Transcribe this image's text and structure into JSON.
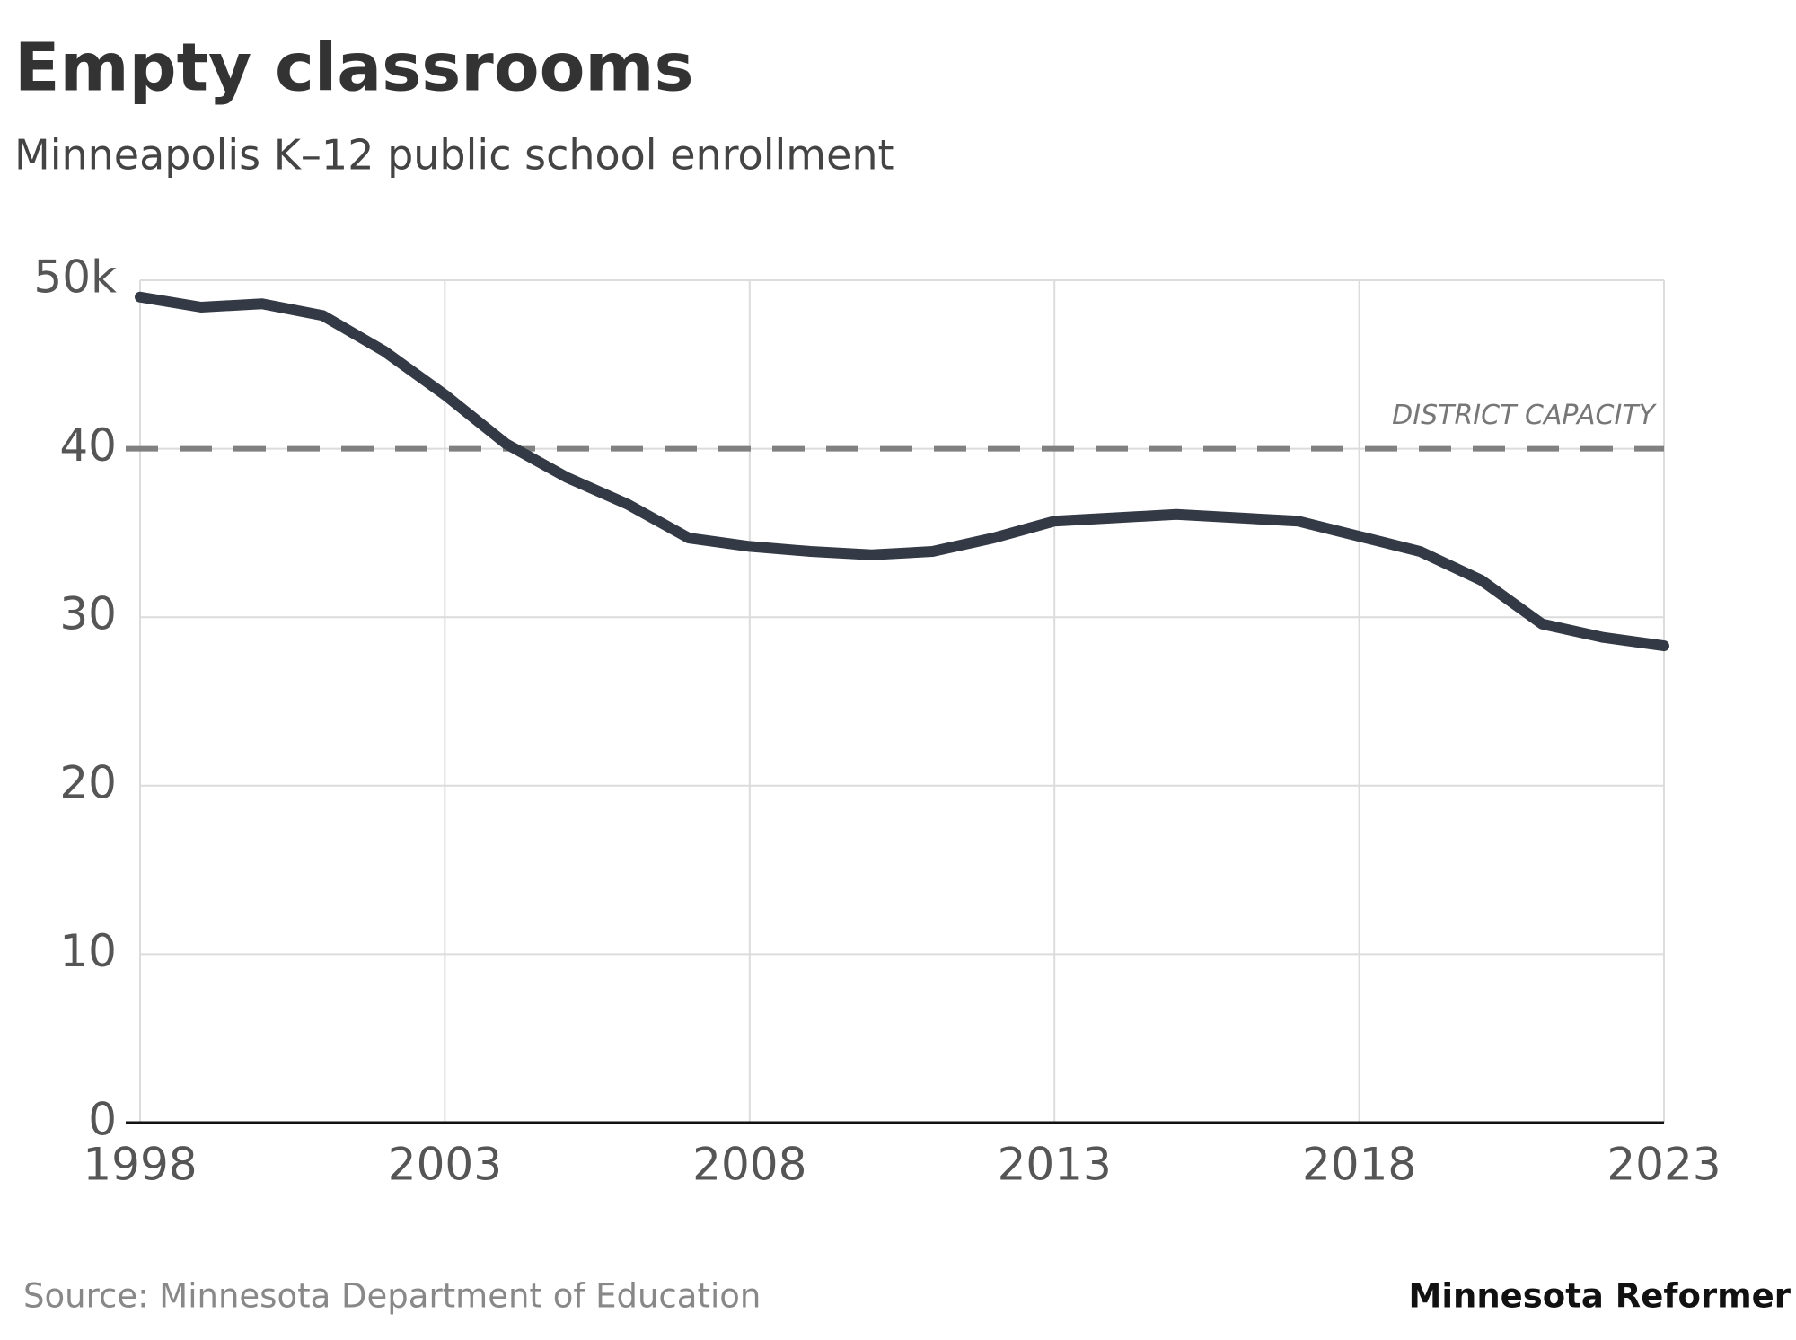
{
  "chart_data": {
    "type": "line",
    "title": "Empty classrooms",
    "subtitle": "Minneapolis K–12 public school enrollment",
    "source": "Source: Minnesota Department of Education",
    "publisher": "Minnesota Reformer",
    "x": [
      1998,
      1999,
      2000,
      2001,
      2002,
      2003,
      2004,
      2005,
      2006,
      2007,
      2008,
      2009,
      2010,
      2011,
      2012,
      2013,
      2014,
      2015,
      2016,
      2017,
      2018,
      2019,
      2020,
      2021,
      2022,
      2023
    ],
    "series": [
      {
        "color": "#333a45",
        "values": [
          49.0,
          48.4,
          48.6,
          47.9,
          45.8,
          43.2,
          40.3,
          38.3,
          36.7,
          34.7,
          34.2,
          33.9,
          33.7,
          33.9,
          34.7,
          35.7,
          35.9,
          36.1,
          35.9,
          35.7,
          34.8,
          33.9,
          32.2,
          29.6,
          28.8,
          28.3
        ]
      }
    ],
    "xlim": [
      1998,
      2023
    ],
    "xticks": [
      1998,
      2003,
      2008,
      2013,
      2018,
      2023
    ],
    "ylim": [
      0,
      50
    ],
    "yticks": [
      0,
      10,
      20,
      30,
      40,
      {
        "value": 50,
        "label": "50k"
      }
    ],
    "grid": true,
    "reference_line": {
      "value": 40,
      "label": "DISTRICT CAPACITY",
      "color": "#808080"
    }
  }
}
